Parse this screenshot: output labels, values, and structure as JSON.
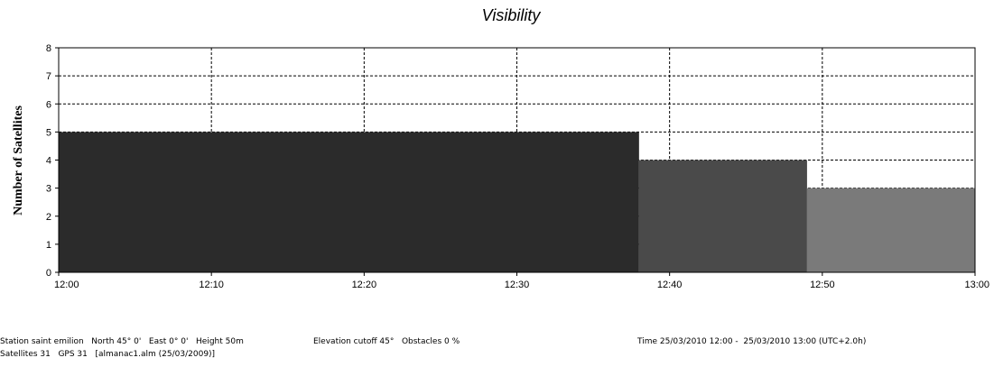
{
  "chart_data": {
    "type": "area",
    "title": "Visibility",
    "xlabel": "",
    "ylabel": "Number of Satellites",
    "x_ticks": [
      "12:00",
      "12:10",
      "12:20",
      "12:30",
      "12:40",
      "12:50",
      "13:00"
    ],
    "x_range_minutes": [
      0,
      60
    ],
    "ylim": [
      0,
      8
    ],
    "y_ticks": [
      0,
      1,
      2,
      3,
      4,
      5,
      6,
      7,
      8
    ],
    "grid": true,
    "segments": [
      {
        "start": "12:00",
        "end": "12:38",
        "start_min": 0,
        "end_min": 38,
        "value": 5,
        "color": "#2b2b2b"
      },
      {
        "start": "12:38",
        "end": "12:49",
        "start_min": 38,
        "end_min": 49,
        "value": 4,
        "color": "#4a4a4a"
      },
      {
        "start": "12:49",
        "end": "13:00",
        "start_min": 49,
        "end_min": 60,
        "value": 3,
        "color": "#7a7a7a"
      }
    ]
  },
  "footer": {
    "station": "Station saint emilion   North 45° 0'   East 0° 0'   Height 50m",
    "elevation": "Elevation cutoff 45°   Obstacles 0 %",
    "time": "Time 25/03/2010 12:00 -  25/03/2010 13:00 (UTC+2.0h)",
    "satellites": "Satellites 31   GPS 31   [almanac1.alm (25/03/2009)]"
  }
}
